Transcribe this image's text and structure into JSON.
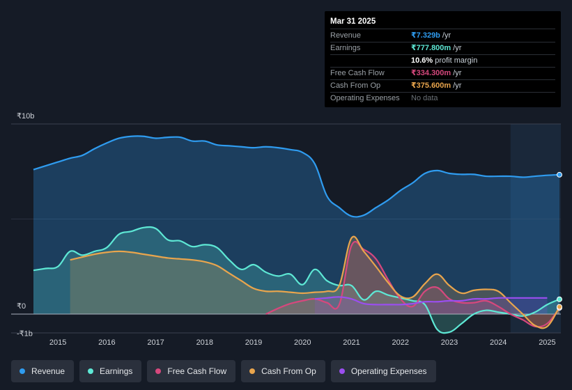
{
  "tooltip": {
    "date": "Mar 31 2025",
    "rows": [
      {
        "label": "Revenue",
        "value": "₹7.329b",
        "unit": "/yr",
        "color": "#2f9cf0"
      },
      {
        "label": "Earnings",
        "value": "₹777.800m",
        "unit": "/yr",
        "color": "#5ee8d5"
      },
      {
        "label": "",
        "value": "10.6%",
        "unit": "profit margin",
        "color": "#ffffff"
      },
      {
        "label": "Free Cash Flow",
        "value": "₹334.300m",
        "unit": "/yr",
        "color": "#d6487d"
      },
      {
        "label": "Cash From Op",
        "value": "₹375.600m",
        "unit": "/yr",
        "color": "#e9a54d"
      },
      {
        "label": "Operating Expenses",
        "value": "No data",
        "unit": "",
        "color": "#6b7177"
      }
    ]
  },
  "legend": [
    {
      "label": "Revenue",
      "color": "#2f9cf0"
    },
    {
      "label": "Earnings",
      "color": "#5ee8d5"
    },
    {
      "label": "Free Cash Flow",
      "color": "#d6487d"
    },
    {
      "label": "Cash From Op",
      "color": "#e9a54d"
    },
    {
      "label": "Operating Expenses",
      "color": "#9b4ef0"
    }
  ],
  "chart_data": {
    "type": "area",
    "title": "",
    "xlabel": "",
    "ylabel": "",
    "unit": "INR billions",
    "ylim": [
      -1,
      10
    ],
    "y_tick_labels": [
      {
        "value": 10,
        "label": "₹10b"
      },
      {
        "value": 0,
        "label": "₹0"
      },
      {
        "value": -1,
        "label": "-₹1b"
      }
    ],
    "x_ticks": [
      2015,
      2016,
      2017,
      2018,
      2019,
      2020,
      2021,
      2022,
      2023,
      2024,
      2025
    ],
    "xlim": [
      2014.5,
      2025.25
    ],
    "forecast_from": 2024.25,
    "series": [
      {
        "name": "Revenue",
        "color": "#2f9cf0",
        "x": [
          2014.5,
          2014.75,
          2015.0,
          2015.25,
          2015.5,
          2015.75,
          2016.0,
          2016.25,
          2016.5,
          2016.75,
          2017.0,
          2017.25,
          2017.5,
          2017.75,
          2018.0,
          2018.25,
          2018.5,
          2018.75,
          2019.0,
          2019.25,
          2019.5,
          2019.75,
          2020.0,
          2020.25,
          2020.5,
          2020.75,
          2021.0,
          2021.25,
          2021.5,
          2021.75,
          2022.0,
          2022.25,
          2022.5,
          2022.75,
          2023.0,
          2023.25,
          2023.5,
          2023.75,
          2024.0,
          2024.25,
          2024.5,
          2024.75,
          2025.0,
          2025.25
        ],
        "y": [
          7.6,
          7.8,
          8.0,
          8.2,
          8.35,
          8.7,
          9.0,
          9.25,
          9.35,
          9.35,
          9.25,
          9.3,
          9.3,
          9.1,
          9.1,
          8.9,
          8.85,
          8.8,
          8.75,
          8.8,
          8.75,
          8.65,
          8.5,
          7.9,
          6.2,
          5.6,
          5.15,
          5.2,
          5.6,
          6.0,
          6.5,
          6.9,
          7.4,
          7.55,
          7.4,
          7.35,
          7.35,
          7.25,
          7.25,
          7.25,
          7.2,
          7.25,
          7.3,
          7.33
        ]
      },
      {
        "name": "Earnings",
        "color": "#5ee8d5",
        "x": [
          2014.5,
          2014.75,
          2015.0,
          2015.25,
          2015.5,
          2015.75,
          2016.0,
          2016.25,
          2016.5,
          2016.75,
          2017.0,
          2017.25,
          2017.5,
          2017.75,
          2018.0,
          2018.25,
          2018.5,
          2018.75,
          2019.0,
          2019.25,
          2019.5,
          2019.75,
          2020.0,
          2020.25,
          2020.5,
          2020.75,
          2021.0,
          2021.25,
          2021.5,
          2021.75,
          2022.0,
          2022.25,
          2022.5,
          2022.75,
          2023.0,
          2023.25,
          2023.5,
          2023.75,
          2024.0,
          2024.25,
          2024.5,
          2024.75,
          2025.0,
          2025.25
        ],
        "y": [
          2.3,
          2.4,
          2.5,
          3.3,
          3.1,
          3.3,
          3.5,
          4.2,
          4.35,
          4.55,
          4.5,
          3.9,
          3.85,
          3.55,
          3.65,
          3.5,
          2.85,
          2.35,
          2.6,
          2.2,
          2.0,
          2.1,
          1.55,
          2.35,
          1.75,
          1.5,
          1.5,
          0.75,
          1.2,
          1.0,
          0.85,
          0.7,
          0.5,
          -0.8,
          -0.95,
          -0.5,
          0.0,
          0.2,
          0.1,
          0.0,
          -0.1,
          0.1,
          0.5,
          0.78
        ]
      },
      {
        "name": "Free Cash Flow",
        "color": "#d6487d",
        "x": [
          2019.25,
          2019.5,
          2019.75,
          2020.0,
          2020.25,
          2020.5,
          2020.75,
          2021.0,
          2021.25,
          2021.5,
          2021.75,
          2022.0,
          2022.25,
          2022.5,
          2022.75,
          2023.0,
          2023.25,
          2023.5,
          2023.75,
          2024.0,
          2024.25,
          2024.5,
          2024.75,
          2025.0,
          2025.25
        ],
        "y": [
          0.0,
          0.3,
          0.55,
          0.7,
          0.8,
          0.6,
          0.5,
          3.6,
          3.4,
          2.9,
          1.8,
          0.8,
          0.4,
          1.2,
          1.4,
          0.8,
          0.6,
          0.6,
          0.7,
          0.4,
          0.0,
          -0.3,
          -0.65,
          -0.5,
          0.33
        ]
      },
      {
        "name": "Cash From Op",
        "color": "#e9a54d",
        "x": [
          2015.25,
          2015.5,
          2015.75,
          2016.0,
          2016.25,
          2016.5,
          2016.75,
          2017.0,
          2017.25,
          2017.5,
          2017.75,
          2018.0,
          2018.25,
          2018.5,
          2018.75,
          2019.0,
          2019.25,
          2019.5,
          2019.75,
          2020.0,
          2020.25,
          2020.5,
          2020.75,
          2021.0,
          2021.25,
          2021.5,
          2021.75,
          2022.0,
          2022.25,
          2022.5,
          2022.75,
          2023.0,
          2023.25,
          2023.5,
          2023.75,
          2024.0,
          2024.25,
          2024.5,
          2024.75,
          2025.0,
          2025.25
        ],
        "y": [
          2.85,
          3.0,
          3.15,
          3.25,
          3.3,
          3.25,
          3.15,
          3.05,
          2.95,
          2.9,
          2.85,
          2.75,
          2.55,
          2.15,
          1.75,
          1.35,
          1.2,
          1.2,
          1.15,
          1.1,
          1.15,
          1.2,
          1.5,
          4.0,
          3.3,
          2.5,
          1.65,
          0.95,
          0.9,
          1.6,
          2.1,
          1.5,
          1.1,
          1.25,
          1.3,
          1.2,
          0.6,
          0.0,
          -0.6,
          -0.65,
          0.38
        ]
      },
      {
        "name": "Operating Expenses",
        "color": "#9b4ef0",
        "x": [
          2020.25,
          2020.5,
          2020.75,
          2021.0,
          2021.25,
          2021.5,
          2021.75,
          2022.0,
          2022.25,
          2022.5,
          2022.75,
          2023.0,
          2023.25,
          2023.5,
          2023.75,
          2024.0,
          2024.25,
          2024.5,
          2024.75,
          2025.0
        ],
        "y": [
          0.8,
          0.85,
          0.9,
          0.8,
          0.55,
          0.5,
          0.5,
          0.5,
          0.55,
          0.65,
          0.65,
          0.7,
          0.7,
          0.8,
          0.8,
          0.85,
          0.85,
          0.85,
          0.85,
          0.85
        ]
      }
    ]
  }
}
